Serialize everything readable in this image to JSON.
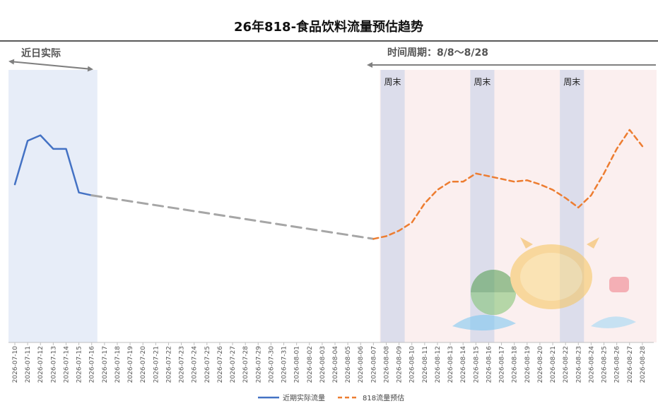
{
  "chart_data": {
    "type": "line",
    "title": "26年818-食品饮料流量预估趋势",
    "xlabel": "",
    "ylabel": "",
    "ylim": [
      0,
      100
    ],
    "grid": false,
    "legend_position": "bottom",
    "dates": [
      "2026-07-10",
      "2026-07-11",
      "2026-07-12",
      "2026-07-13",
      "2026-07-14",
      "2026-07-15",
      "2026-07-16",
      "2026-07-17",
      "2026-07-18",
      "2026-07-19",
      "2026-07-20",
      "2026-07-21",
      "2026-07-22",
      "2026-07-23",
      "2026-07-24",
      "2026-07-25",
      "2026-07-26",
      "2026-07-27",
      "2026-07-28",
      "2026-07-29",
      "2026-07-30",
      "2026-07-31",
      "2026-08-01",
      "2026-08-02",
      "2026-08-03",
      "2026-08-04",
      "2026-08-05",
      "2026-08-06",
      "2026-08-07",
      "2026-08-08",
      "2026-08-09",
      "2026-08-10",
      "2026-08-11",
      "2026-08-12",
      "2026-08-13",
      "2026-08-14",
      "2026-08-15",
      "2026-08-16",
      "2026-08-17",
      "2026-08-18",
      "2026-08-19",
      "2026-08-20",
      "2026-08-21",
      "2026-08-22",
      "2026-08-23",
      "2026-08-24",
      "2026-08-25",
      "2026-08-26",
      "2026-08-27",
      "2026-08-28"
    ],
    "series": [
      {
        "name": "近期实际流量",
        "color": "#4472C4",
        "style": "solid",
        "x": [
          "2026-07-10",
          "2026-07-11",
          "2026-07-12",
          "2026-07-13",
          "2026-07-14",
          "2026-07-15",
          "2026-07-16"
        ],
        "values": [
          58,
          74,
          76,
          71,
          71,
          55,
          54
        ]
      },
      {
        "name": "",
        "color": "#A6A6A6",
        "style": "dashed",
        "x": [
          "2026-07-16",
          "2026-08-07"
        ],
        "values": [
          54,
          38
        ]
      },
      {
        "name": "818流量预估",
        "color": "#ED7D31",
        "style": "dashed",
        "x": [
          "2026-08-07",
          "2026-08-08",
          "2026-08-09",
          "2026-08-10",
          "2026-08-11",
          "2026-08-12",
          "2026-08-13",
          "2026-08-14",
          "2026-08-15",
          "2026-08-16",
          "2026-08-17",
          "2026-08-18",
          "2026-08-19",
          "2026-08-20",
          "2026-08-21",
          "2026-08-22",
          "2026-08-23",
          "2026-08-24",
          "2026-08-25",
          "2026-08-26",
          "2026-08-27",
          "2026-08-28"
        ],
        "values": [
          38,
          39,
          41,
          44,
          51,
          56,
          59,
          59,
          62,
          61,
          60,
          59,
          59.5,
          58,
          56,
          53,
          49.5,
          54,
          62,
          71,
          78,
          72
        ]
      }
    ],
    "regions": [
      {
        "label": "近日实际",
        "from": "2026-07-10",
        "to": "2026-07-16",
        "fill": "#E7EDF8"
      },
      {
        "label": "时间周期：8/8～8/28",
        "from": "2026-08-08",
        "to": "2026-08-28",
        "fill": "#FBEFEF"
      }
    ],
    "weekend_bands": [
      {
        "label": "周末",
        "from": "2026-08-08",
        "to": "2026-08-09"
      },
      {
        "label": "周末",
        "from": "2026-08-15",
        "to": "2026-08-16"
      },
      {
        "label": "周末",
        "from": "2026-08-22",
        "to": "2026-08-23"
      }
    ],
    "weekend_color": "#DCDDEB"
  }
}
